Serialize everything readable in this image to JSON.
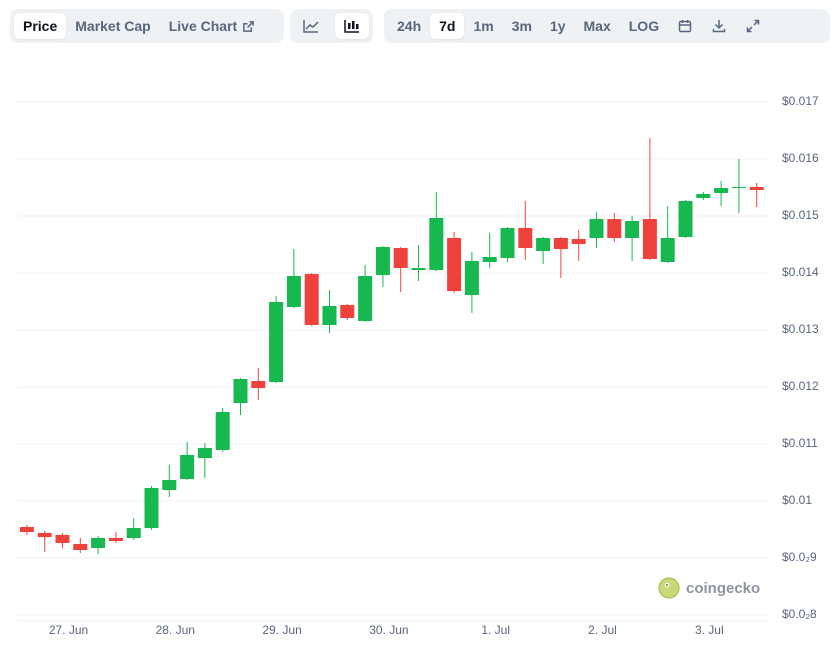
{
  "toolbar": {
    "views": [
      "Price",
      "Market Cap",
      "Live Chart"
    ],
    "ranges": [
      "24h",
      "7d",
      "1m",
      "3m",
      "1y",
      "Max",
      "LOG"
    ]
  },
  "watermark": "coingecko",
  "chart_data": {
    "type": "candlestick",
    "categories": [
      null,
      null,
      "27. Jun",
      null,
      null,
      null,
      null,
      null,
      "28. Jun",
      null,
      null,
      null,
      null,
      null,
      "29. Jun",
      null,
      null,
      null,
      null,
      null,
      "30. Jun",
      null,
      null,
      null,
      null,
      null,
      "1. Jul",
      null,
      null,
      null,
      null,
      null,
      "2. Jul",
      null,
      null,
      null,
      null,
      null,
      "3. Jul",
      null,
      null,
      null
    ],
    "open": [
      0.009544,
      0.009439,
      0.009404,
      0.009246,
      0.009175,
      0.009351,
      0.009351,
      0.009526,
      0.010193,
      0.010386,
      0.010754,
      0.010895,
      0.011719,
      0.012105,
      0.012088,
      0.013404,
      0.013982,
      0.013088,
      0.013439,
      0.013158,
      0.013965,
      0.014439,
      0.014053,
      0.014053,
      0.014614,
      0.013614,
      0.014193,
      0.014263,
      0.014789,
      0.014386,
      0.014614,
      0.014596,
      0.014614,
      0.014947,
      0.014614,
      0.014947,
      0.014193,
      0.014632,
      0.015316,
      0.015404,
      0.015491,
      0.015509
    ],
    "high": [
      0.009579,
      0.009474,
      0.009439,
      0.009351,
      0.009386,
      0.009456,
      0.009702,
      0.010263,
      0.010632,
      0.011035,
      0.011018,
      0.011632,
      0.012158,
      0.012333,
      0.013596,
      0.014421,
      0.014,
      0.013702,
      0.013456,
      0.01414,
      0.014474,
      0.014456,
      0.014491,
      0.015421,
      0.014719,
      0.014368,
      0.014702,
      0.014807,
      0.015263,
      0.014632,
      0.014632,
      0.014754,
      0.01507,
      0.015053,
      0.015,
      0.016368,
      0.015175,
      0.015281,
      0.015421,
      0.015614,
      0.016,
      0.015579
    ],
    "low": [
      0.009404,
      0.009105,
      0.009175,
      0.009088,
      0.00907,
      0.009263,
      0.009316,
      0.009491,
      0.01007,
      0.010368,
      0.010404,
      0.01086,
      0.011509,
      0.011772,
      0.01207,
      0.013386,
      0.01307,
      0.012947,
      0.013175,
      0.01314,
      0.013754,
      0.013667,
      0.01386,
      0.014035,
      0.013649,
      0.013298,
      0.014088,
      0.014193,
      0.014228,
      0.014158,
      0.013912,
      0.014211,
      0.014439,
      0.014544,
      0.014211,
      0.014228,
      0.014175,
      0.014614,
      0.015281,
      0.015175,
      0.015053,
      0.015158
    ],
    "close": [
      0.009456,
      0.009368,
      0.009263,
      0.00914,
      0.009351,
      0.009298,
      0.009526,
      0.010228,
      0.010368,
      0.010807,
      0.01093,
      0.011561,
      0.01214,
      0.011982,
      0.013491,
      0.013947,
      0.013088,
      0.013421,
      0.013211,
      0.013947,
      0.014456,
      0.014088,
      0.014088,
      0.014965,
      0.013684,
      0.014211,
      0.014281,
      0.014789,
      0.014439,
      0.014614,
      0.014421,
      0.014509,
      0.014947,
      0.014614,
      0.014912,
      0.014246,
      0.014614,
      0.015263,
      0.015386,
      0.015491,
      0.015509,
      0.015456
    ],
    "up_color": "#16b84f",
    "down_color": "#f0423c",
    "ylim": [
      0.0079,
      0.0174
    ],
    "yticks": [
      {
        "value": 0.008,
        "label": "$0.0₂8"
      },
      {
        "value": 0.009,
        "label": "$0.0₂9"
      },
      {
        "value": 0.01,
        "label": "$0.01"
      },
      {
        "value": 0.011,
        "label": "$0.011"
      },
      {
        "value": 0.012,
        "label": "$0.012"
      },
      {
        "value": 0.013,
        "label": "$0.013"
      },
      {
        "value": 0.014,
        "label": "$0.014"
      },
      {
        "value": 0.015,
        "label": "$0.015"
      },
      {
        "value": 0.016,
        "label": "$0.016"
      },
      {
        "value": 0.017,
        "label": "$0.017"
      }
    ],
    "grid": true
  }
}
